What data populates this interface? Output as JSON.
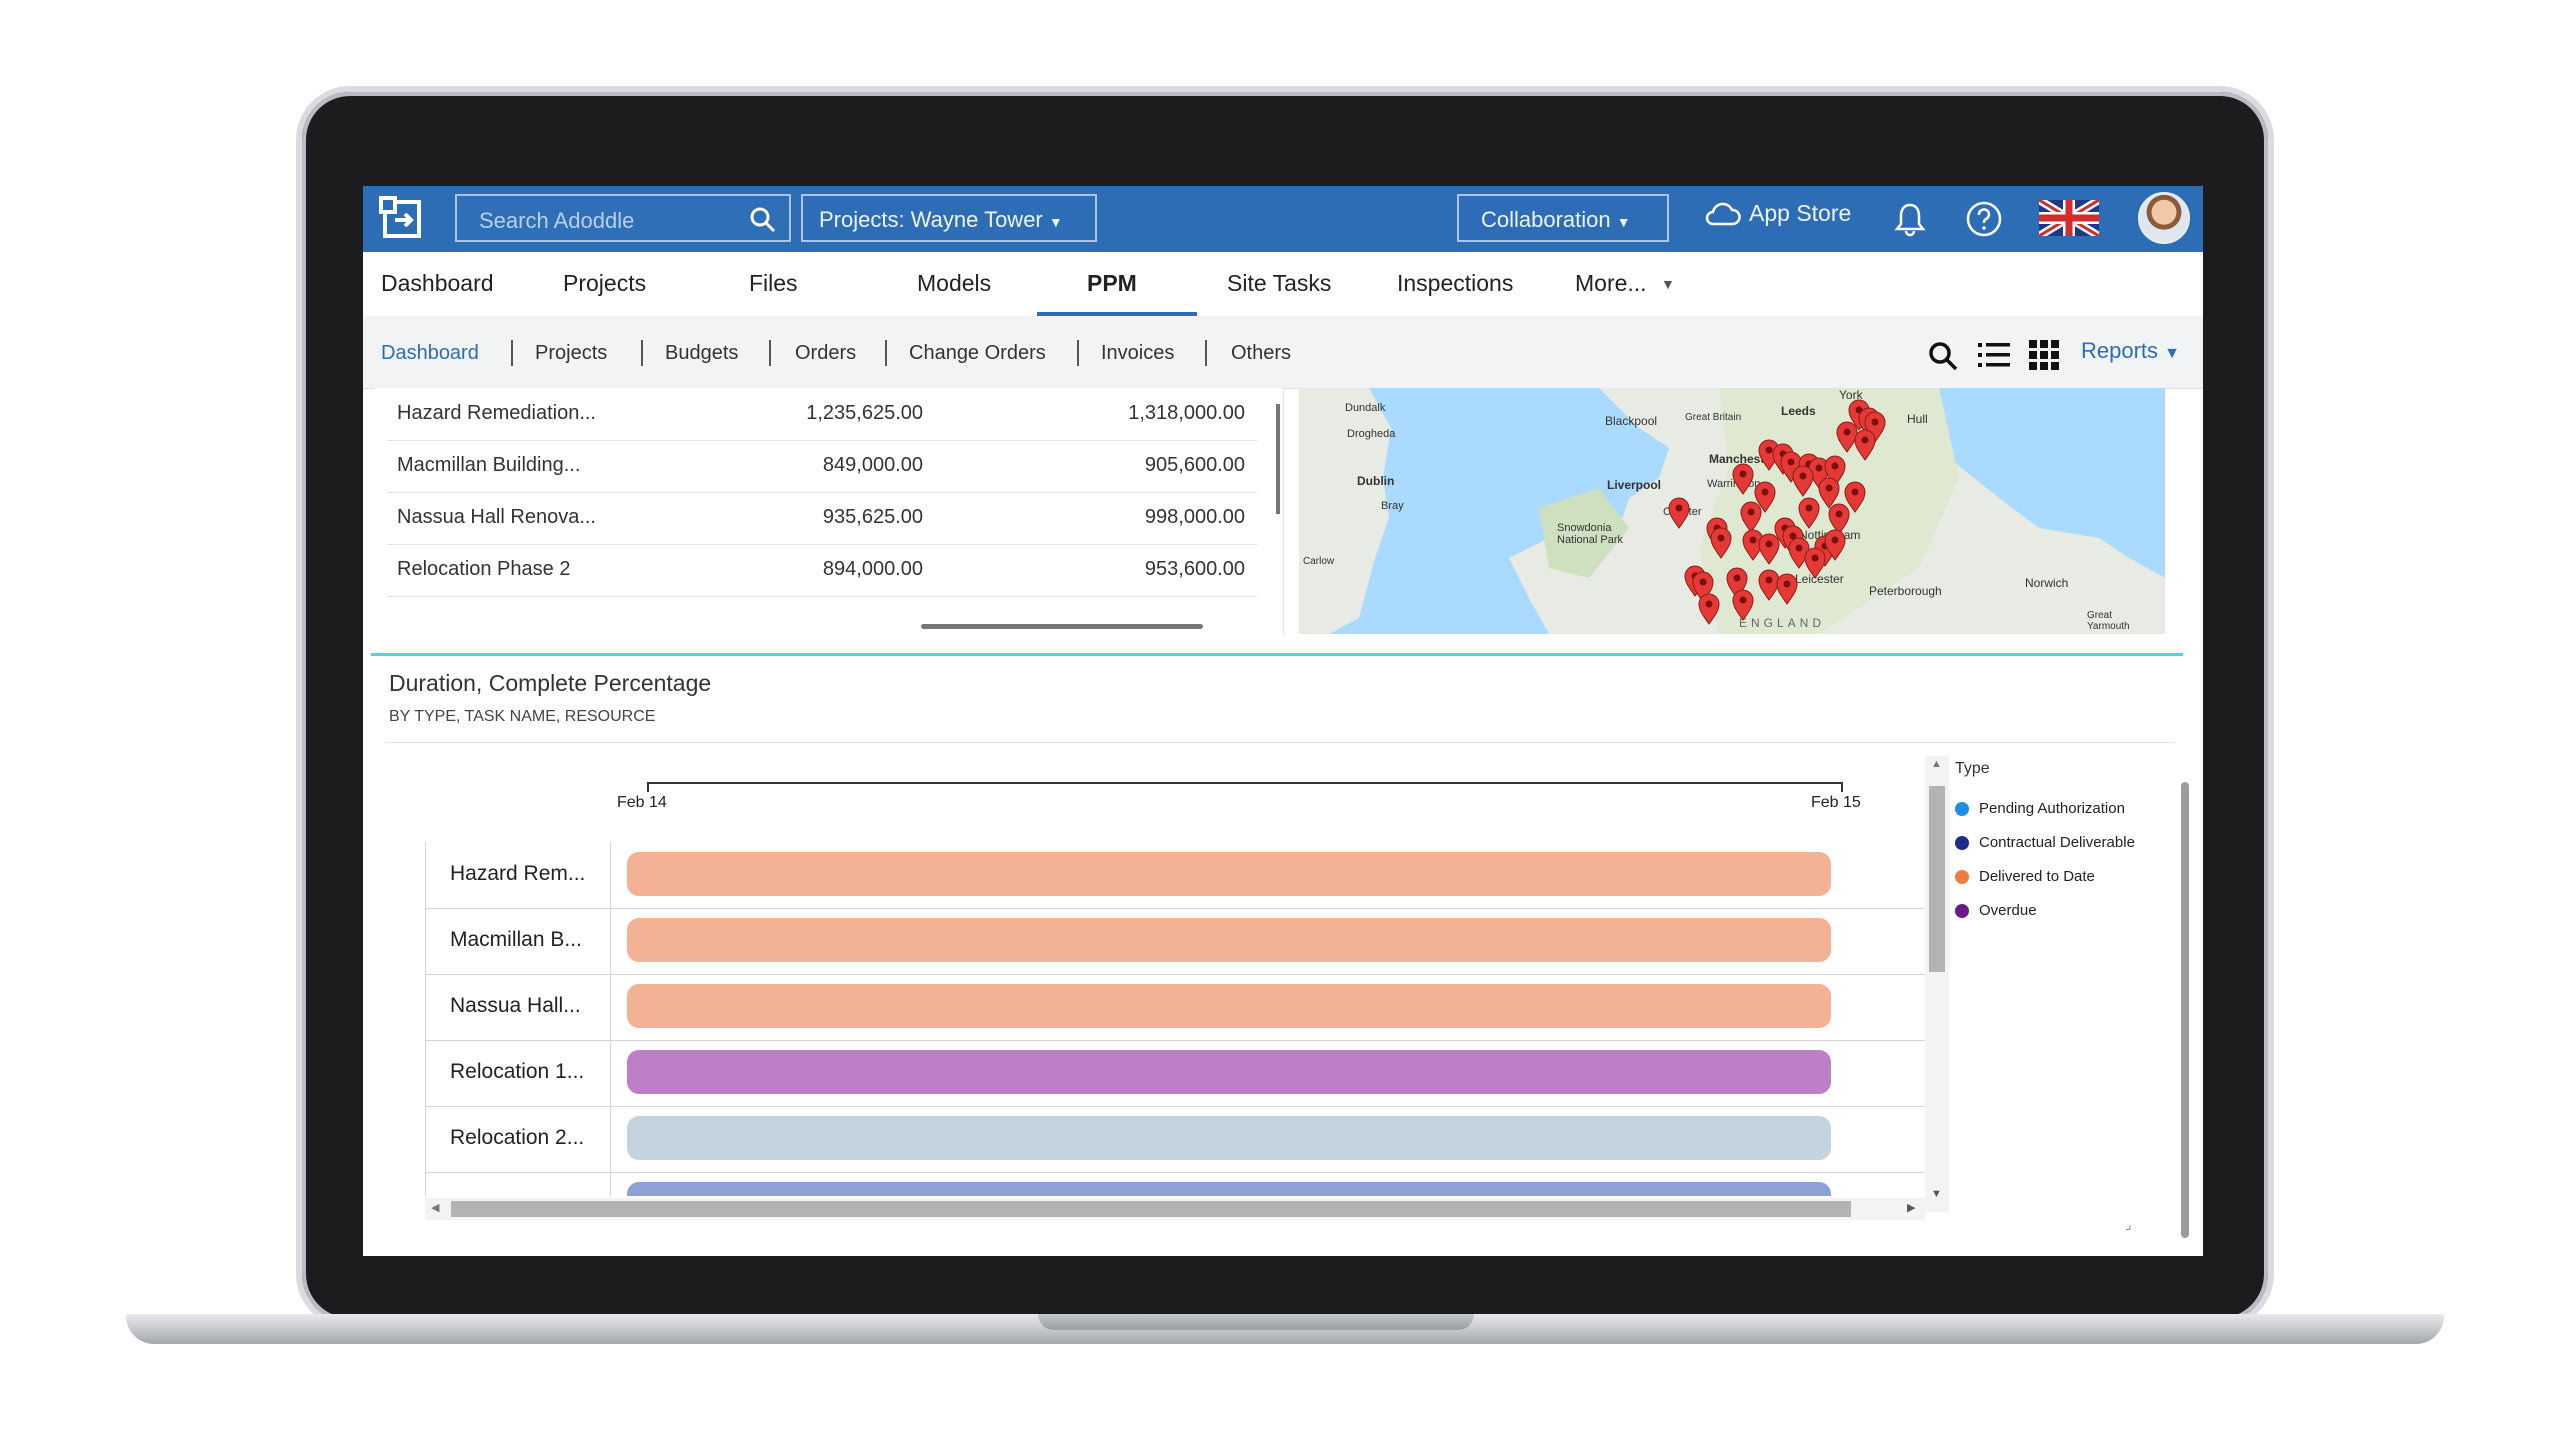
{
  "topbar": {
    "search_placeholder": "Search Adoddle",
    "project_select": "Projects: Wayne Tower",
    "collaboration": "Collaboration",
    "app_store": "App Store"
  },
  "main_nav": [
    {
      "label": "Dashboard",
      "active": false
    },
    {
      "label": "Projects",
      "active": false
    },
    {
      "label": "Files",
      "active": false
    },
    {
      "label": "Models",
      "active": false
    },
    {
      "label": "PPM",
      "active": true
    },
    {
      "label": "Site Tasks",
      "active": false
    },
    {
      "label": "Inspections",
      "active": false
    },
    {
      "label": "More...",
      "active": false
    }
  ],
  "sub_nav": [
    {
      "label": "Dashboard",
      "active": true
    },
    {
      "label": "Projects",
      "active": false
    },
    {
      "label": "Budgets",
      "active": false
    },
    {
      "label": "Orders",
      "active": false
    },
    {
      "label": "Change Orders",
      "active": false
    },
    {
      "label": "Invoices",
      "active": false
    },
    {
      "label": "Others",
      "active": false
    }
  ],
  "reports_label": "Reports",
  "budget_table": [
    [
      "Hazard Remediation...",
      "1,235,625.00",
      "1,318,000.00"
    ],
    [
      "Macmillan Building...",
      "849,000.00",
      "905,600.00"
    ],
    [
      "Nassua Hall Renova...",
      "935,625.00",
      "998,000.00"
    ],
    [
      "Relocation Phase 2",
      "894,000.00",
      "953,600.00"
    ]
  ],
  "map_labels": [
    "York",
    "Leeds",
    "Hull",
    "Blackpool",
    "Great Britain",
    "Manchester",
    "Liverpool",
    "Warrington",
    "Dublin",
    "Bray",
    "Drogheda",
    "Dundalk",
    "Snowdonia National Park",
    "Chester",
    "Nottingham",
    "Leicester",
    "Peterborough",
    "Norwich",
    "Great Yarmouth",
    "ENGLAND",
    "Carlow"
  ],
  "chart": {
    "title": "Duration, Complete Percentage",
    "subtitle": "BY TYPE, TASK NAME, RESOURCE",
    "legend_title": "Type"
  },
  "chart_data": {
    "type": "gantt",
    "x_ticks": [
      "Feb 14",
      "Feb 15"
    ],
    "tasks": [
      {
        "name": "Hazard Rem...",
        "start": "Feb 14",
        "end": "Feb 15",
        "color": "#f3b196"
      },
      {
        "name": "Macmillan B...",
        "start": "Feb 14",
        "end": "Feb 15",
        "color": "#f3b196"
      },
      {
        "name": "Nassua Hall...",
        "start": "Feb 14",
        "end": "Feb 15",
        "color": "#f3b196"
      },
      {
        "name": "Relocation 1...",
        "start": "Feb 14",
        "end": "Feb 15",
        "color": "#bd7fc5"
      },
      {
        "name": "Relocation 2...",
        "start": "Feb 14",
        "end": "Feb 15",
        "color": "#c5d3de"
      },
      {
        "name": "",
        "start": "Feb 14",
        "end": "Feb 15",
        "color": "#8ea1d6"
      }
    ],
    "legend": [
      {
        "label": "Pending Authorization",
        "color": "#1f8fe6"
      },
      {
        "label": "Contractual Deliverable",
        "color": "#1d2d8f"
      },
      {
        "label": "Delivered to Date",
        "color": "#ef7d3f"
      },
      {
        "label": "Overdue",
        "color": "#6a1a8a"
      }
    ]
  }
}
